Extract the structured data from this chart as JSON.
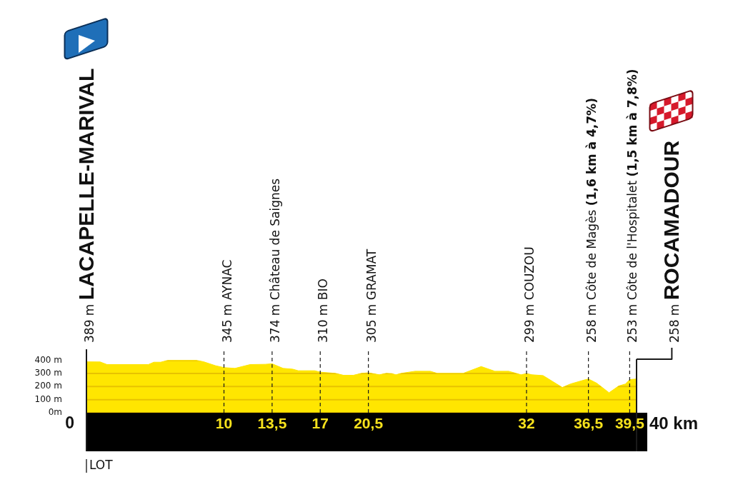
{
  "chart_data": {
    "type": "area",
    "color": "#ffe600",
    "x": [
      0,
      1,
      1.5,
      4.5,
      4.9,
      5.4,
      5.9,
      8,
      8.5,
      9.4,
      10,
      10.8,
      11.9,
      13,
      13.5,
      14.3,
      15,
      15.4,
      16.6,
      17,
      18.1,
      18.7,
      19.4,
      20,
      20.5,
      21.3,
      21.8,
      22.2,
      22.5,
      22.9,
      23.9,
      25,
      25.5,
      27.4,
      28.7,
      29.7,
      30.7,
      31.6,
      32,
      32.4,
      33.2,
      34.6,
      35.2,
      36.3,
      36.5,
      37.1,
      38,
      38.7,
      39.2,
      39.5,
      40
    ],
    "values": [
      389,
      388,
      368,
      368,
      386,
      386,
      400,
      400,
      390,
      359,
      345,
      339,
      368,
      370,
      374,
      339,
      333,
      321,
      321,
      310,
      301,
      286,
      286,
      301,
      305,
      290,
      301,
      299,
      290,
      301,
      317,
      317,
      301,
      301,
      353,
      317,
      317,
      290,
      299,
      290,
      284,
      193,
      220,
      253,
      258,
      226,
      153,
      204,
      220,
      253,
      258
    ],
    "xlim": [
      0,
      40
    ],
    "xticks": [
      10,
      {
        "value": 13.5,
        "label": "13,5"
      },
      17,
      {
        "value": 20.5,
        "label": "20,5"
      },
      32,
      {
        "value": 36.5,
        "label": "36,5"
      },
      {
        "value": 39.5,
        "label": "39,5"
      }
    ],
    "ylim": [
      0,
      480
    ],
    "yticks": [
      {
        "value": 0,
        "label": "0m"
      },
      {
        "value": 100,
        "label": "100 m"
      },
      {
        "value": 200,
        "label": "200 m"
      },
      {
        "value": 300,
        "label": "300 m"
      },
      {
        "value": 400,
        "label": "400 m"
      }
    ],
    "grid": "y",
    "ref_lines": [
      {
        "axis": "x",
        "value": 0,
        "label": "389 m LACAPELLE-MARIVAL",
        "line_style": "solid"
      },
      {
        "axis": "x",
        "value": 10,
        "label": "345 m AYNAC",
        "line_style": "dashed"
      },
      {
        "axis": "x",
        "value": 13.5,
        "label": "374 m Château de Saignes",
        "line_style": "dashed"
      },
      {
        "axis": "x",
        "value": 17,
        "label": "310 m BIO",
        "line_style": "dashed"
      },
      {
        "axis": "x",
        "value": 20.5,
        "label": "305 m GRAMAT",
        "line_style": "dashed"
      },
      {
        "axis": "x",
        "value": 32,
        "label": "299 m COUZOU",
        "line_style": "dashed"
      },
      {
        "axis": "x",
        "value": 36.5,
        "label": "258 m Côte de Magès (1,6 km à 4,7%)",
        "line_style": "dashed"
      },
      {
        "axis": "x",
        "value": 39.5,
        "label": "253 m Côte de l'Hospitalet (1,5 km à 7,8%)",
        "line_style": "dashed"
      },
      {
        "axis": "x",
        "value": 40,
        "label": "258 m ROCAMADOUR",
        "line_style": "solid"
      }
    ],
    "annotations": [
      "0",
      "40 km",
      "LOT"
    ]
  }
}
